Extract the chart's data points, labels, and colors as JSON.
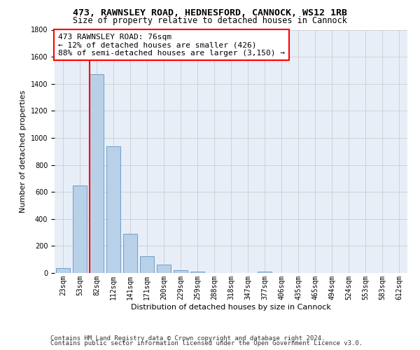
{
  "title1": "473, RAWNSLEY ROAD, HEDNESFORD, CANNOCK, WS12 1RB",
  "title2": "Size of property relative to detached houses in Cannock",
  "xlabel": "Distribution of detached houses by size in Cannock",
  "ylabel": "Number of detached properties",
  "bar_labels": [
    "23sqm",
    "53sqm",
    "82sqm",
    "112sqm",
    "141sqm",
    "171sqm",
    "200sqm",
    "229sqm",
    "259sqm",
    "288sqm",
    "318sqm",
    "347sqm",
    "377sqm",
    "406sqm",
    "435sqm",
    "465sqm",
    "494sqm",
    "524sqm",
    "553sqm",
    "583sqm",
    "612sqm"
  ],
  "bar_values": [
    38,
    650,
    1470,
    935,
    290,
    125,
    60,
    22,
    12,
    0,
    0,
    0,
    12,
    0,
    0,
    0,
    0,
    0,
    0,
    0,
    0
  ],
  "bar_color": "#b8d0e8",
  "bar_edge_color": "#6fa0c8",
  "vline_x_index": 2,
  "annotation_line1": "473 RAWNSLEY ROAD: 76sqm",
  "annotation_line2": "← 12% of detached houses are smaller (426)",
  "annotation_line3": "88% of semi-detached houses are larger (3,150) →",
  "annotation_box_color": "white",
  "annotation_box_edge_color": "red",
  "vline_color": "red",
  "ylim": [
    0,
    1800
  ],
  "yticks": [
    0,
    200,
    400,
    600,
    800,
    1000,
    1200,
    1400,
    1600,
    1800
  ],
  "grid_color": "#cccccc",
  "bg_color": "#e8eef8",
  "footer1": "Contains HM Land Registry data © Crown copyright and database right 2024.",
  "footer2": "Contains public sector information licensed under the Open Government Licence v3.0.",
  "title1_fontsize": 9.5,
  "title2_fontsize": 8.5,
  "xlabel_fontsize": 8,
  "ylabel_fontsize": 8,
  "tick_fontsize": 7,
  "annotation_fontsize": 8,
  "footer_fontsize": 6.5
}
